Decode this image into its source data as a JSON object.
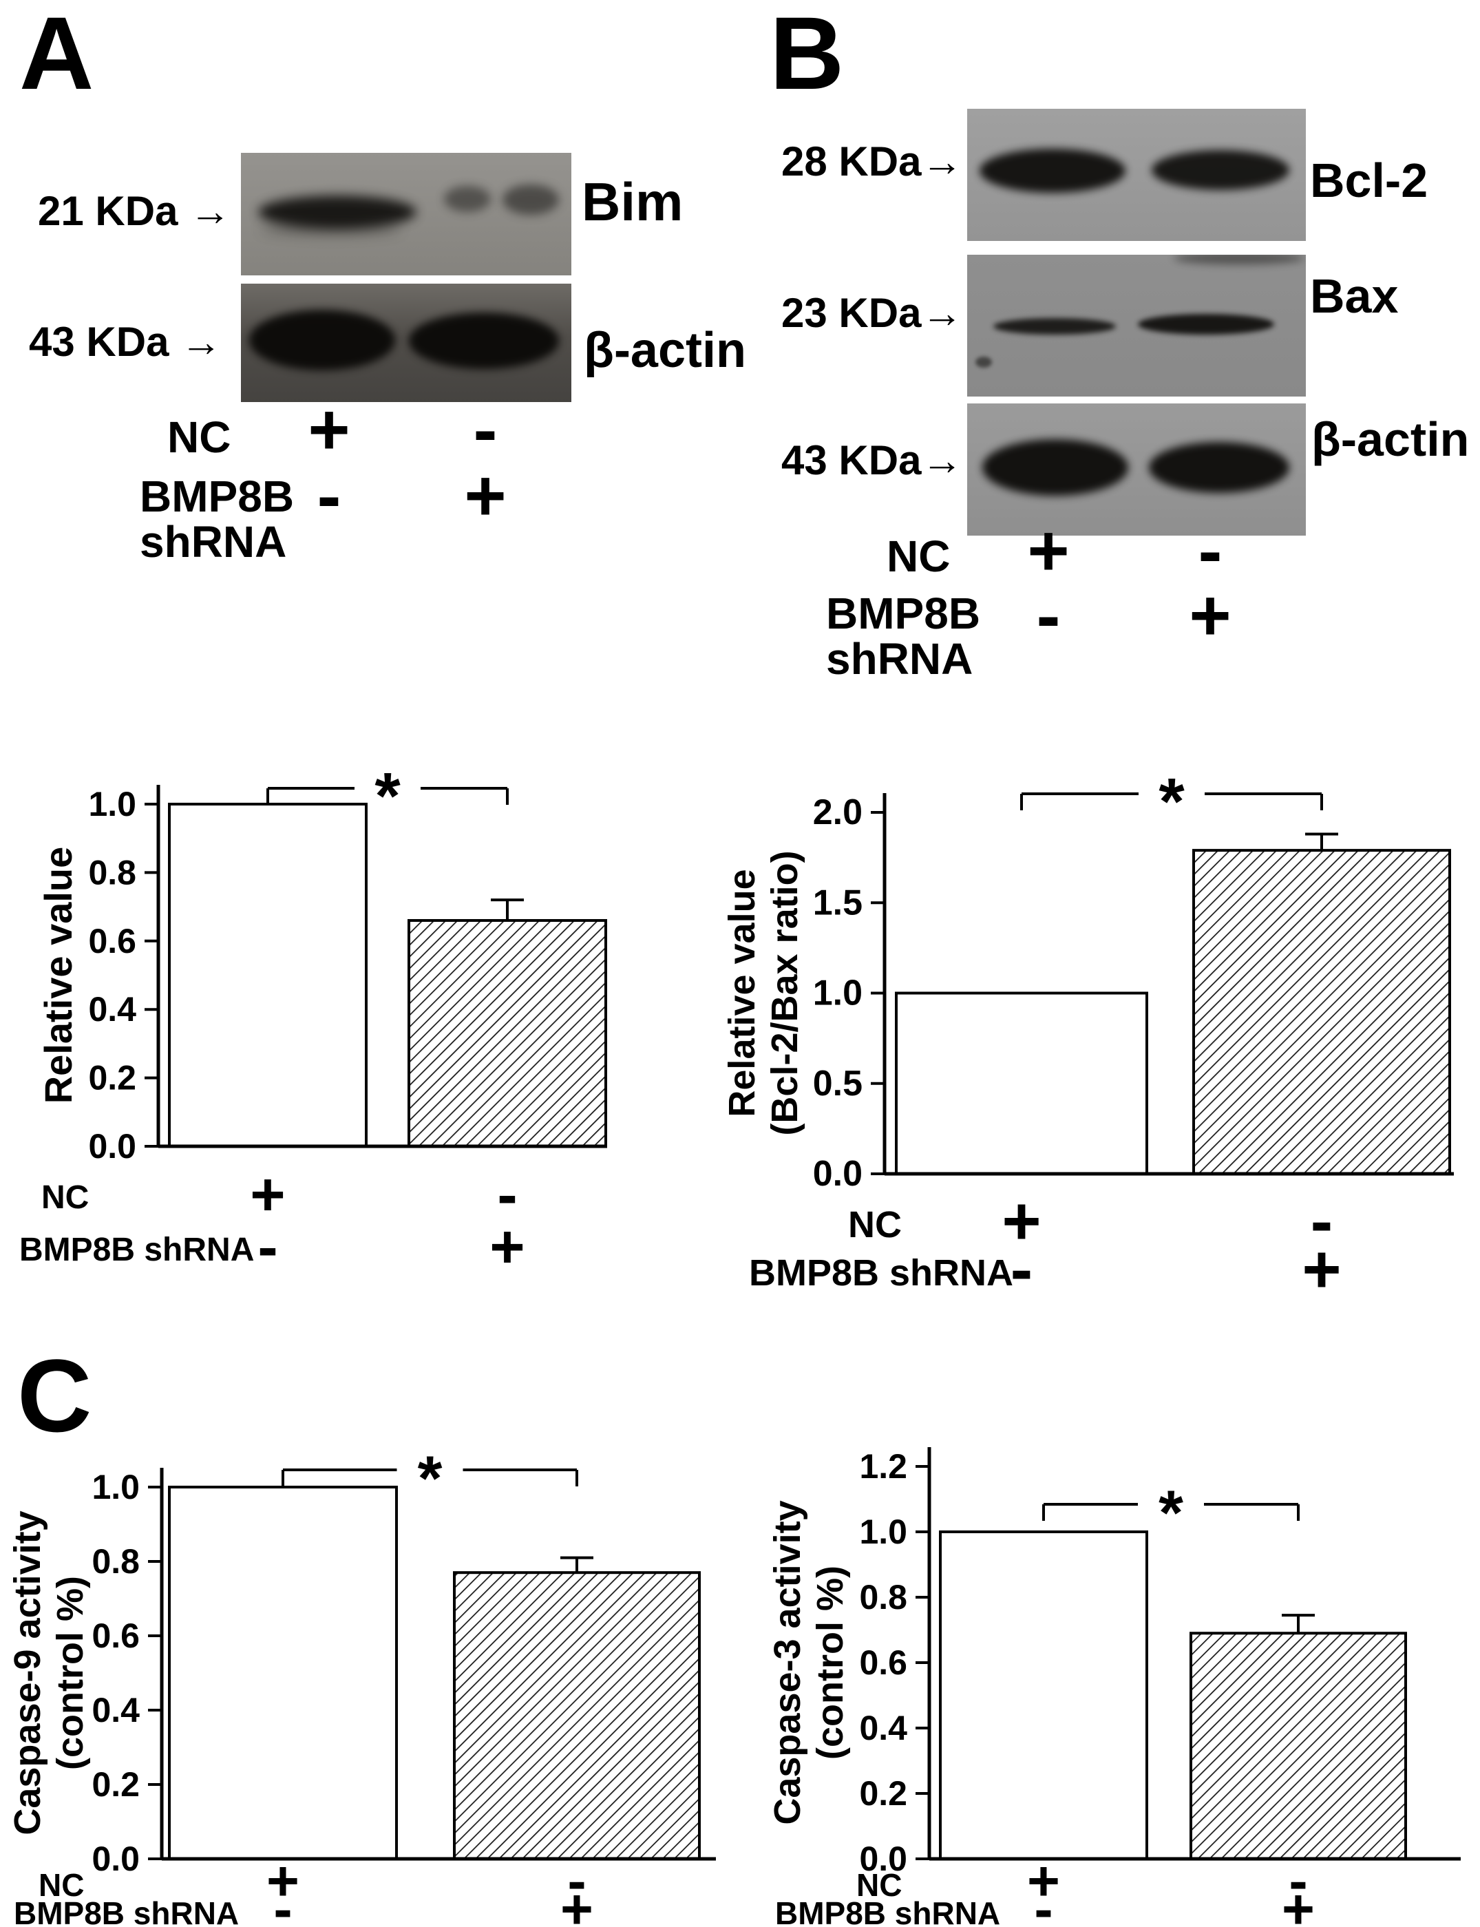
{
  "colors": {
    "axis": "#000000",
    "bar_open_fill": "#ffffff",
    "bar_hatch_line": "#1a1a1a",
    "text": "#000000"
  },
  "panel_a": {
    "letter": "A",
    "blot_bim": {
      "size_label": "21 KDa →",
      "protein": "Bim"
    },
    "blot_actin": {
      "size_label": "43 KDa →",
      "protein": "β-actin"
    },
    "row_nc": {
      "label": "NC",
      "lane1": "+",
      "lane2": "-"
    },
    "row_shrna": {
      "label_line1": "BMP8B",
      "label_line2": "shRNA",
      "lane1": "-",
      "lane2": "+"
    }
  },
  "panel_b": {
    "letter": "B",
    "blot_bcl2": {
      "size_label": "28 KDa→",
      "protein": "Bcl-2"
    },
    "blot_bax": {
      "size_label": "23 KDa→",
      "protein": "Bax"
    },
    "blot_actin": {
      "size_label": "43 KDa→",
      "protein": "β-actin"
    },
    "row_nc": {
      "label": "NC",
      "lane1": "+",
      "lane2": "-"
    },
    "row_shrna": {
      "label_line1": "BMP8B",
      "label_line2": "shRNA",
      "lane1": "-",
      "lane2": "+"
    }
  },
  "panel_c": {
    "letter": "C"
  },
  "chart_data": [
    {
      "id": "bim-relative-value",
      "panel": "A",
      "type": "bar",
      "categories": [
        "NC",
        "BMP8B shRNA"
      ],
      "values": [
        1.0,
        0.66
      ],
      "errors": [
        0,
        0.06
      ],
      "bar_styles": [
        "open",
        "hatched"
      ],
      "ylabel_lines": [
        "Relative value"
      ],
      "ylim": [
        0,
        1.0
      ],
      "yticks": [
        "0.0",
        "0.2",
        "0.4",
        "0.6",
        "0.8",
        "1.0"
      ],
      "significance": "*",
      "x_rows": [
        {
          "label": "NC",
          "symbols": [
            "+",
            "-"
          ]
        },
        {
          "label": "BMP8B shRNA",
          "symbols": [
            "-",
            "+"
          ]
        }
      ]
    },
    {
      "id": "bcl2-bax-ratio",
      "panel": "B",
      "type": "bar",
      "categories": [
        "NC",
        "BMP8B shRNA"
      ],
      "values": [
        1.0,
        1.79
      ],
      "errors": [
        0,
        0.09
      ],
      "bar_styles": [
        "open",
        "hatched"
      ],
      "ylabel_lines": [
        "Relative value",
        "(Bcl-2/Bax ratio)"
      ],
      "ylim": [
        0,
        2.0
      ],
      "yticks": [
        "0.0",
        "0.5",
        "1.0",
        "1.5",
        "2.0"
      ],
      "significance": "*",
      "x_rows": [
        {
          "label": "NC",
          "symbols": [
            "+",
            "-"
          ]
        },
        {
          "label": "BMP8B shRNA",
          "symbols": [
            "-",
            "+"
          ]
        }
      ]
    },
    {
      "id": "caspase-9-activity",
      "panel": "C",
      "type": "bar",
      "categories": [
        "NC",
        "BMP8B shRNA"
      ],
      "values": [
        1.0,
        0.77
      ],
      "errors": [
        0,
        0.04
      ],
      "bar_styles": [
        "open",
        "hatched"
      ],
      "ylabel_lines": [
        "Caspase-9 activity",
        "(control %)"
      ],
      "ylim": [
        0,
        1.0
      ],
      "yticks": [
        "0.0",
        "0.2",
        "0.4",
        "0.6",
        "0.8",
        "1.0"
      ],
      "significance": "*",
      "x_rows": [
        {
          "label": "NC",
          "symbols": [
            "+",
            "-"
          ]
        },
        {
          "label": "BMP8B shRNA",
          "symbols": [
            "-",
            "+"
          ]
        }
      ]
    },
    {
      "id": "caspase-3-activity",
      "panel": "C",
      "type": "bar",
      "categories": [
        "NC",
        "BMP8B shRNA"
      ],
      "values": [
        1.0,
        0.69
      ],
      "errors": [
        0,
        0.055
      ],
      "bar_styles": [
        "open",
        "hatched"
      ],
      "ylabel_lines": [
        "Caspase-3 activity",
        "(control %)"
      ],
      "ylim": [
        0,
        1.2
      ],
      "yticks": [
        "0.0",
        "0.2",
        "0.4",
        "0.6",
        "0.8",
        "1.0",
        "1.2"
      ],
      "significance": "*",
      "x_rows": [
        {
          "label": "NC",
          "symbols": [
            "+",
            "-"
          ]
        },
        {
          "label": "BMP8B shRNA",
          "symbols": [
            "-",
            "+"
          ]
        }
      ]
    }
  ]
}
